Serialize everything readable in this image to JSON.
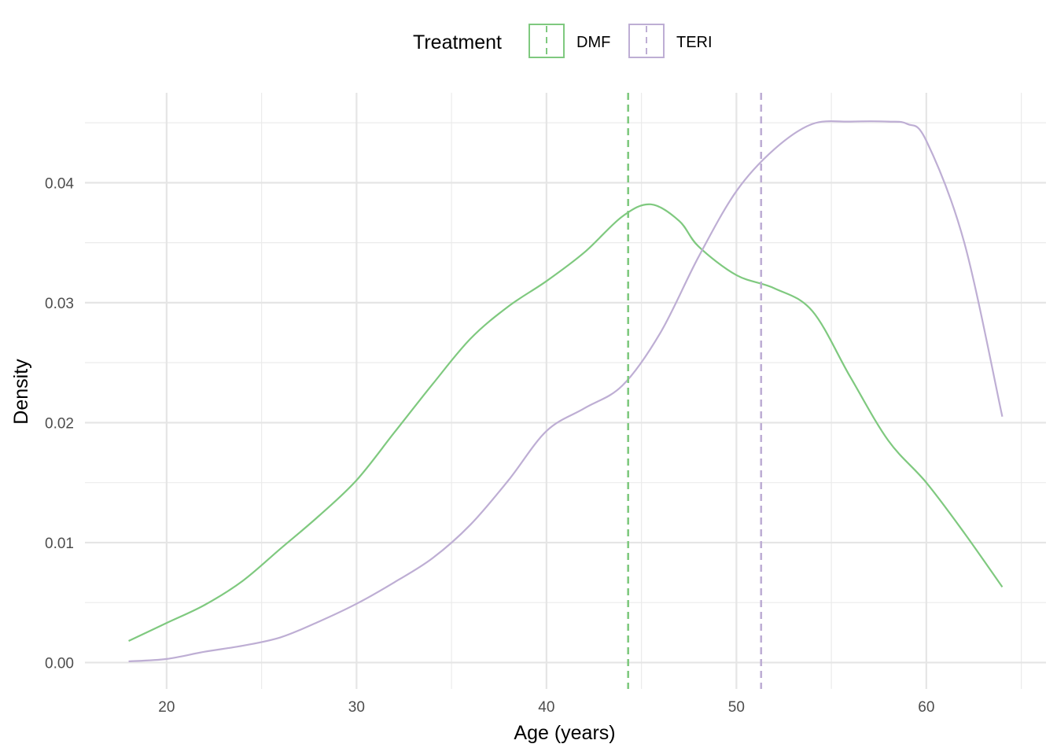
{
  "chart_data": {
    "type": "line",
    "xlabel": "Age (years)",
    "ylabel": "Density",
    "xlim": [
      15.7,
      66.3
    ],
    "ylim": [
      -0.0022,
      0.0475
    ],
    "x_ticks": [
      20,
      30,
      40,
      50,
      60
    ],
    "x_tick_labels": [
      "20",
      "30",
      "40",
      "50",
      "60"
    ],
    "y_ticks": [
      0.0,
      0.01,
      0.02,
      0.03,
      0.04
    ],
    "y_tick_labels": [
      "0.00",
      "0.01",
      "0.02",
      "0.03",
      "0.04"
    ],
    "grid": true,
    "legend": {
      "title": "Treatment",
      "position": "top"
    },
    "series": [
      {
        "name": "DMF",
        "color": "#7fc97f",
        "mean_line": 44.3,
        "x": [
          18,
          20,
          22,
          24,
          26,
          28,
          30,
          32,
          34,
          36,
          38,
          40,
          42,
          44,
          45.5,
          47,
          48,
          50,
          52,
          54,
          56,
          58,
          60,
          62,
          64
        ],
        "y": [
          0.0018,
          0.0033,
          0.0048,
          0.0068,
          0.0095,
          0.0122,
          0.0152,
          0.0192,
          0.0232,
          0.027,
          0.0297,
          0.0318,
          0.0342,
          0.0372,
          0.0382,
          0.0368,
          0.0347,
          0.0323,
          0.0312,
          0.0293,
          0.0238,
          0.0185,
          0.015,
          0.0108,
          0.0063
        ]
      },
      {
        "name": "TERI",
        "color": "#beaed4",
        "mean_line": 51.3,
        "x": [
          18,
          20,
          22,
          24,
          26,
          28,
          30,
          32,
          34,
          36,
          38,
          40,
          42,
          44,
          46,
          48,
          50,
          52,
          54,
          56,
          58,
          59,
          60,
          62,
          64
        ],
        "y": [
          0.0001,
          0.0003,
          0.0009,
          0.0014,
          0.0021,
          0.0034,
          0.0049,
          0.0067,
          0.0087,
          0.0115,
          0.0152,
          0.0193,
          0.0212,
          0.0231,
          0.0275,
          0.0338,
          0.0393,
          0.0428,
          0.0449,
          0.0451,
          0.0451,
          0.0449,
          0.0435,
          0.035,
          0.0205
        ]
      }
    ]
  }
}
